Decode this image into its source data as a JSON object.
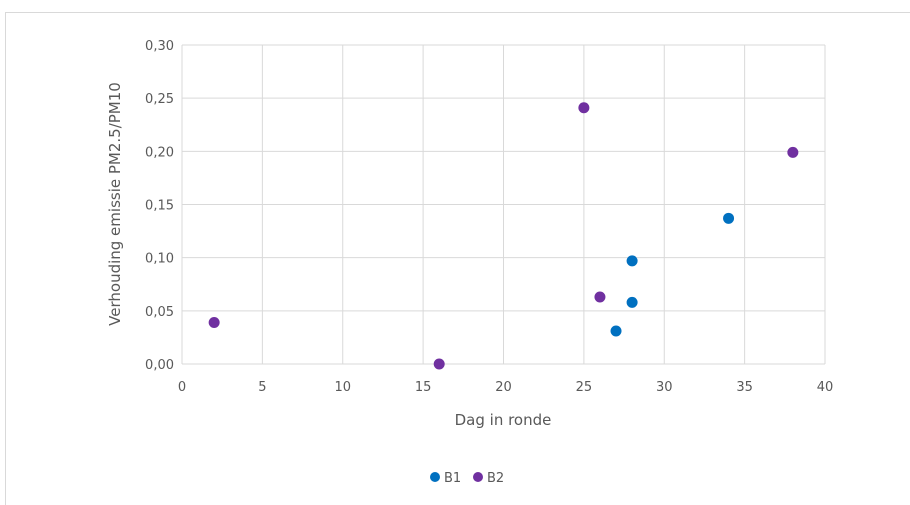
{
  "chart_data": {
    "type": "scatter",
    "title": "",
    "xlabel": "Dag in ronde",
    "ylabel": "Verhouding emissie PM2.5/PM10",
    "xlim": [
      0,
      40
    ],
    "ylim": [
      0,
      0.3
    ],
    "x_ticks": [
      0,
      5,
      10,
      15,
      20,
      25,
      30,
      35,
      40
    ],
    "x_tick_labels": [
      "0",
      "5",
      "10",
      "15",
      "20",
      "25",
      "30",
      "35",
      "40"
    ],
    "y_ticks": [
      0,
      0.05,
      0.1,
      0.15,
      0.2,
      0.25,
      0.3
    ],
    "y_tick_labels": [
      "0,00",
      "0,05",
      "0,10",
      "0,15",
      "0,20",
      "0,25",
      "0,30"
    ],
    "grid": true,
    "legend_position": "bottom",
    "series": [
      {
        "name": "B1",
        "color": "#0070c0",
        "points": [
          {
            "x": 27,
            "y": 0.031
          },
          {
            "x": 28,
            "y": 0.058
          },
          {
            "x": 28,
            "y": 0.097
          },
          {
            "x": 34,
            "y": 0.137
          }
        ]
      },
      {
        "name": "B2",
        "color": "#7030a0",
        "points": [
          {
            "x": 2,
            "y": 0.039
          },
          {
            "x": 16,
            "y": 0.0
          },
          {
            "x": 25,
            "y": 0.241
          },
          {
            "x": 26,
            "y": 0.063
          },
          {
            "x": 38,
            "y": 0.199
          }
        ]
      }
    ]
  }
}
